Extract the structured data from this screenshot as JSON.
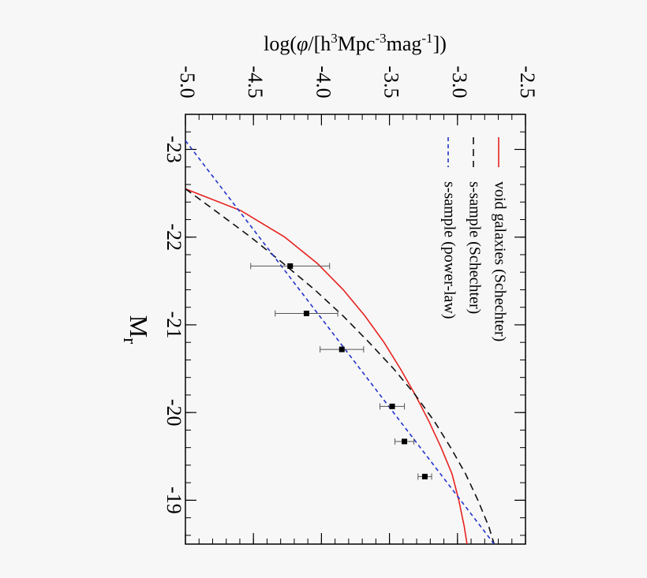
{
  "chart_data": {
    "type": "line",
    "orientation": "rotated-90-clockwise",
    "xlabel": "M",
    "xlabel_sub": "r",
    "ylabel_parts": [
      "log(",
      "φ",
      "/[h",
      "3",
      "Mpc",
      "-3",
      "mag",
      "-1",
      "])"
    ],
    "xlim": [
      -23.4,
      -18.5
    ],
    "ylim": [
      -5.0,
      -2.5
    ],
    "x_ticks": [
      -23,
      -22,
      -21,
      -20,
      -19
    ],
    "x_tick_labels": [
      "-23",
      "-22",
      "-21",
      "-20",
      "-19"
    ],
    "y_ticks": [
      -5.0,
      -4.5,
      -4.0,
      -3.5,
      -3.0,
      -2.5
    ],
    "y_tick_labels": [
      "-5.0",
      "-4.5",
      "-4.0",
      "-3.5",
      "-3.0",
      "-2.5"
    ],
    "series": [
      {
        "name": "void galaxies (Schechter)",
        "style": "solid",
        "color": "#e8221f",
        "x": [
          -22.55,
          -22.3,
          -22.0,
          -21.7,
          -21.4,
          -21.1,
          -20.8,
          -20.5,
          -20.2,
          -19.9,
          -19.6,
          -19.3,
          -19.0,
          -18.7,
          -18.5
        ],
        "y": [
          -5.0,
          -4.59,
          -4.27,
          -4.03,
          -3.84,
          -3.68,
          -3.54,
          -3.42,
          -3.31,
          -3.21,
          -3.12,
          -3.04,
          -2.99,
          -2.95,
          -2.93
        ]
      },
      {
        "name": "s-sample (Schechter)",
        "style": "dashed",
        "color": "#111111",
        "x": [
          -22.55,
          -22.3,
          -22.0,
          -21.7,
          -21.4,
          -21.1,
          -20.8,
          -20.5,
          -20.2,
          -19.9,
          -19.6,
          -19.3,
          -19.0,
          -18.7,
          -18.5
        ],
        "y": [
          -5.0,
          -4.78,
          -4.52,
          -4.28,
          -4.05,
          -3.84,
          -3.65,
          -3.47,
          -3.31,
          -3.17,
          -3.05,
          -2.94,
          -2.85,
          -2.77,
          -2.73
        ]
      },
      {
        "name": "s-sample (power-law)",
        "style": "dashed",
        "color": "#2233cc",
        "x": [
          -23.1,
          -18.5
        ],
        "y": [
          -5.0,
          -2.73
        ]
      }
    ],
    "points": {
      "x": [
        -21.67,
        -21.13,
        -20.72,
        -20.07,
        -19.67,
        -19.27
      ],
      "y": [
        -4.23,
        -4.11,
        -3.85,
        -3.48,
        -3.39,
        -3.24
      ],
      "yerr_low": [
        0.29,
        0.23,
        0.16,
        0.09,
        0.07,
        0.05
      ],
      "yerr_high": [
        0.29,
        0.23,
        0.16,
        0.09,
        0.07,
        0.05
      ]
    },
    "legend_position": "top-right",
    "grid": false
  }
}
